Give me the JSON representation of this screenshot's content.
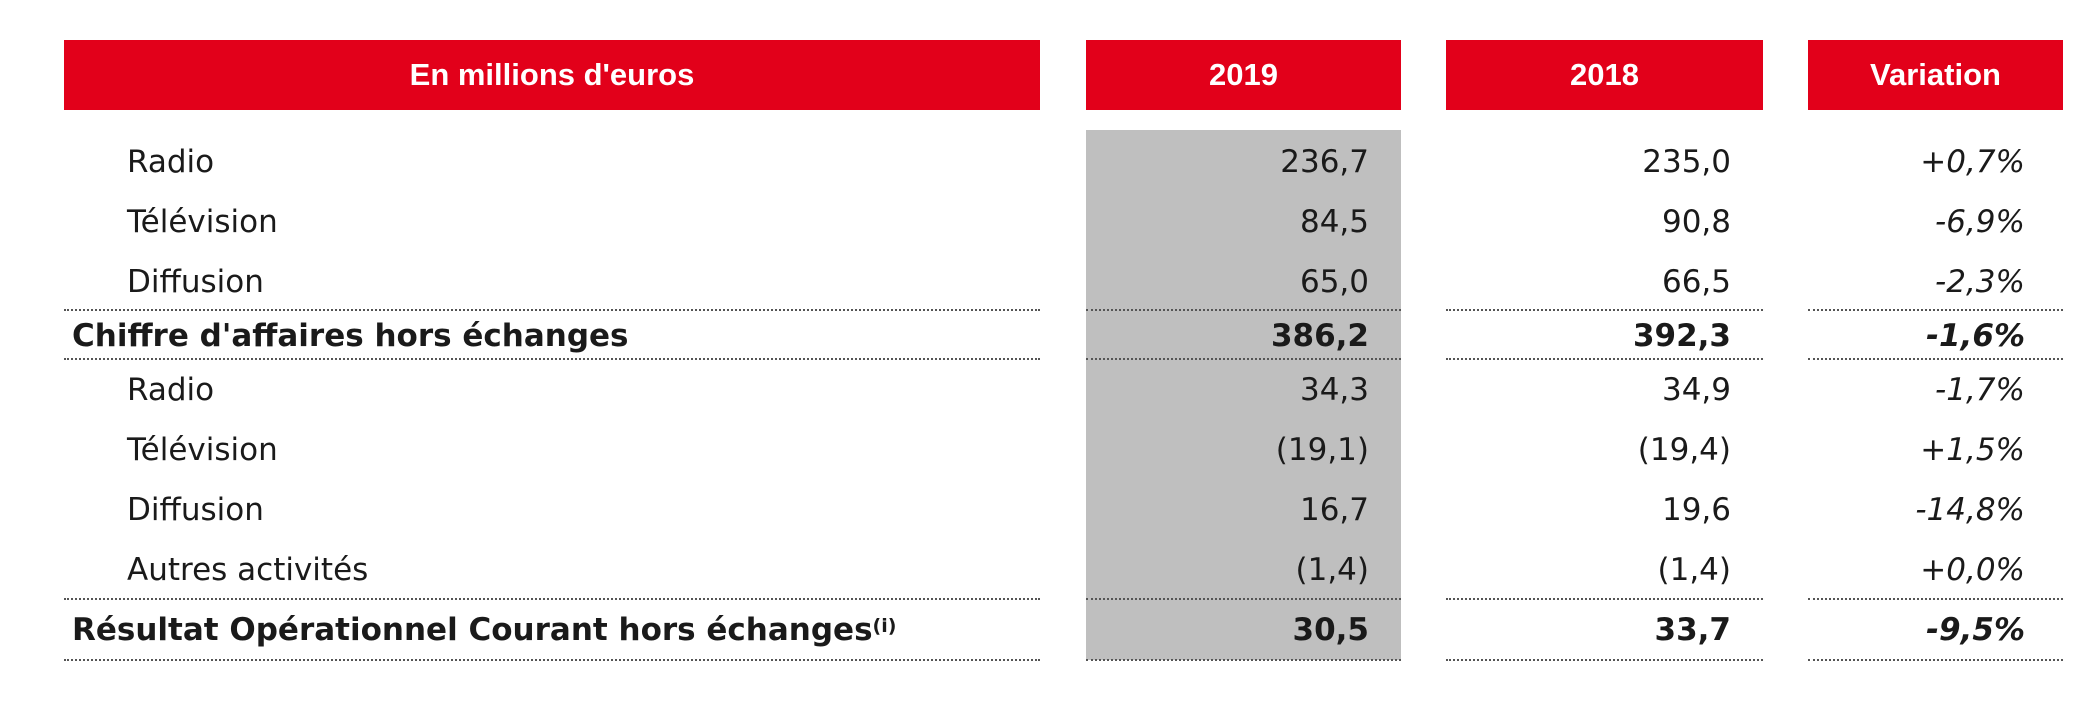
{
  "header": {
    "label": "En millions d'euros",
    "col_2019": "2019",
    "col_2018": "2018",
    "col_variation": "Variation"
  },
  "rows": [
    {
      "label": "Radio",
      "v2019": "236,7",
      "v2018": "235,0",
      "variation": "+0,7%",
      "total": false
    },
    {
      "label": "Télévision",
      "v2019": "84,5",
      "v2018": "90,8",
      "variation": "-6,9%",
      "total": false
    },
    {
      "label": "Diffusion",
      "v2019": "65,0",
      "v2018": "66,5",
      "variation": "-2,3%",
      "total": false
    },
    {
      "label": "Chiffre d'affaires hors échanges",
      "v2019": "386,2",
      "v2018": "392,3",
      "variation": "-1,6%",
      "total": true
    },
    {
      "label": "Radio",
      "v2019": "34,3",
      "v2018": "34,9",
      "variation": "-1,7%",
      "total": false
    },
    {
      "label": "Télévision",
      "v2019": "(19,1)",
      "v2018": "(19,4)",
      "variation": "+1,5%",
      "total": false
    },
    {
      "label": "Diffusion",
      "v2019": "16,7",
      "v2018": "19,6",
      "variation": "-14,8%",
      "total": false
    },
    {
      "label": "Autres activités",
      "v2019": "(1,4)",
      "v2018": "(1,4)",
      "variation": "+0,0%",
      "total": false
    },
    {
      "label": "Résultat Opérationnel Courant hors échanges",
      "footnote": "(i)",
      "v2019": "30,5",
      "v2018": "33,7",
      "variation": "-9,5%",
      "total": true
    }
  ],
  "colors": {
    "header_bg": "#e2001a",
    "header_text": "#ffffff",
    "highlight_column": "#bfbfbf"
  }
}
